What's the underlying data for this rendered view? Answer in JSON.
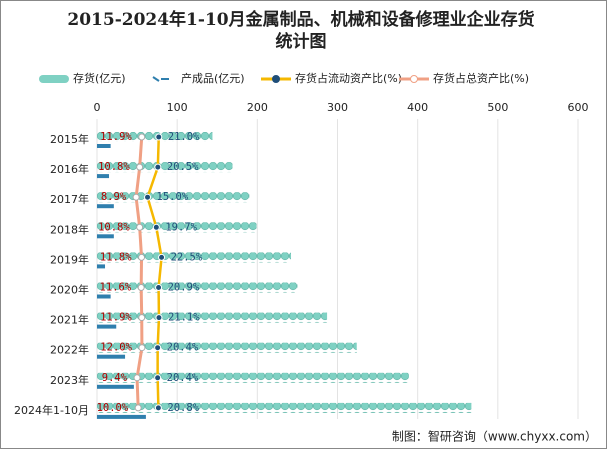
{
  "chart_data": {
    "type": "bar",
    "title": "2015-2024年1-10月金属制品、机械和设备修理业企业存货统计图",
    "categories": [
      "2015年",
      "2016年",
      "2017年",
      "2018年",
      "2019年",
      "2020年",
      "2021年",
      "2022年",
      "2023年",
      "2024年1-10月"
    ],
    "series": [
      {
        "name": "存货(亿元)",
        "color": "#7fd1c3",
        "values": [
          144,
          169,
          190,
          199,
          242,
          250,
          287,
          324,
          389,
          467
        ]
      },
      {
        "name": "产成品(亿元)",
        "color": "#2f7fae",
        "values": [
          17,
          15,
          21,
          21,
          10,
          17,
          24,
          35,
          46,
          61
        ]
      },
      {
        "name": "存货占流动资产比(%)",
        "color": "#f5b800",
        "axis": "x2",
        "label_color": "#1f4e79",
        "values": [
          21.0,
          20.5,
          15.0,
          19.7,
          22.5,
          20.9,
          21.1,
          20.4,
          20.4,
          20.8
        ],
        "value_labels": [
          "21.0%",
          "20.5%",
          "15.0%",
          "19.7%",
          "22.5%",
          "20.9%",
          "21.1%",
          "20.4%",
          "20.4%",
          "20.8%"
        ]
      },
      {
        "name": "存货占总资产比(%)",
        "color": "#f0a084",
        "axis": "x2",
        "label_color": "#b00000",
        "values": [
          11.9,
          10.8,
          8.9,
          10.8,
          11.8,
          11.6,
          11.9,
          12.0,
          9.4,
          10.0
        ],
        "value_labels": [
          "11.9%",
          "10.8%",
          "8.9%",
          "10.8%",
          "11.8%",
          "11.6%",
          "11.9%",
          "12.0%",
          "9.4%",
          "10.0%"
        ]
      }
    ],
    "xlim": [
      0,
      600
    ],
    "xticks": [
      0,
      100,
      200,
      300,
      400,
      500,
      600
    ],
    "x2lim": [
      -12,
      245
    ],
    "grid": true,
    "source": "制图：智研咨询（www.chyxx.com）"
  }
}
